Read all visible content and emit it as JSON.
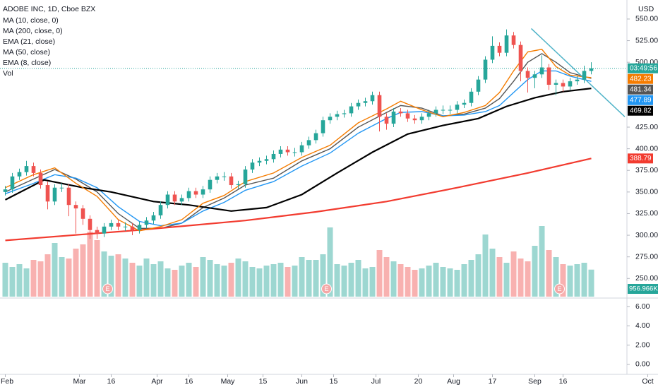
{
  "chart_data": {
    "type": "candlestick",
    "title": "ADOBE INC, 1D, Cboe BZX",
    "currency": "USD",
    "up_color": "#26a69a",
    "down_color": "#ef5350",
    "xlim": [
      -1.5,
      184.9
    ],
    "xticks": [
      {
        "value": 0,
        "label": "Feb"
      },
      {
        "value": 21,
        "label": "Mar"
      },
      {
        "value": 30,
        "label": "16"
      },
      {
        "value": 43,
        "label": "Apr"
      },
      {
        "value": 52,
        "label": "16"
      },
      {
        "value": 63,
        "label": "May"
      },
      {
        "value": 73,
        "label": "15"
      },
      {
        "value": 84,
        "label": "Jun"
      },
      {
        "value": 93,
        "label": "15"
      },
      {
        "value": 105,
        "label": "Jul"
      },
      {
        "value": 117,
        "label": "20"
      },
      {
        "value": 127,
        "label": "Aug"
      },
      {
        "value": 138,
        "label": "17"
      },
      {
        "value": 150,
        "label": "Sep"
      },
      {
        "value": 158,
        "label": "16"
      },
      {
        "value": 182,
        "label": "Oct"
      }
    ],
    "ylim": [
      229,
      572
    ],
    "yticks": [
      {
        "value": 250,
        "label": "250.00"
      },
      {
        "value": 275,
        "label": "275.00"
      },
      {
        "value": 300,
        "label": "300.00"
      },
      {
        "value": 325,
        "label": "325.00"
      },
      {
        "value": 350,
        "label": "350.00"
      },
      {
        "value": 375,
        "label": "375.00"
      },
      {
        "value": 400,
        "label": "400.00"
      },
      {
        "value": 425,
        "label": "425.00"
      },
      {
        "value": 500,
        "label": "500.00"
      },
      {
        "value": 525,
        "label": "525.00"
      },
      {
        "value": 550,
        "label": "550.00"
      }
    ],
    "x": [
      0,
      2,
      4,
      6,
      8,
      10,
      12,
      14,
      16,
      18,
      20,
      22,
      24,
      26,
      28,
      30,
      32,
      34,
      36,
      38,
      40,
      42,
      44,
      46,
      48,
      50,
      52,
      54,
      56,
      58,
      60,
      62,
      64,
      66,
      68,
      70,
      72,
      74,
      76,
      78,
      80,
      82,
      84,
      86,
      88,
      90,
      92,
      94,
      96,
      98,
      100,
      102,
      104,
      106,
      108,
      110,
      112,
      114,
      116,
      118,
      120,
      122,
      124,
      126,
      128,
      130,
      132,
      134,
      136,
      138,
      140,
      142,
      144,
      146,
      148,
      150,
      152,
      154,
      156,
      158,
      160,
      162,
      164,
      166
    ],
    "open": [
      350,
      353,
      368,
      373,
      380,
      372,
      358,
      339,
      355,
      355,
      335,
      331,
      319,
      306,
      302,
      310,
      314,
      310,
      310,
      306,
      312,
      317,
      323,
      335,
      347,
      339,
      343,
      351,
      347,
      353,
      364,
      368,
      368,
      358,
      359,
      376,
      384,
      386,
      388,
      394,
      399,
      396,
      396,
      404,
      410,
      418,
      433,
      437,
      440,
      441,
      449,
      453,
      455,
      462,
      437,
      429,
      443,
      441,
      435,
      433,
      437,
      441,
      445,
      445,
      445,
      451,
      453,
      466,
      480,
      503,
      519,
      511,
      531,
      520,
      490,
      482,
      486,
      494,
      474,
      476,
      472,
      478,
      480,
      490
    ],
    "high": [
      357,
      372,
      377,
      386,
      384,
      376,
      362,
      359,
      360,
      359,
      339,
      335,
      323,
      310,
      314,
      318,
      318,
      315,
      314,
      316,
      321,
      327,
      339,
      351,
      351,
      347,
      355,
      355,
      357,
      368,
      372,
      373,
      372,
      363,
      380,
      388,
      390,
      392,
      398,
      403,
      403,
      401,
      408,
      414,
      422,
      437,
      441,
      444,
      445,
      453,
      457,
      459,
      466,
      466,
      441,
      447,
      447,
      445,
      439,
      441,
      445,
      449,
      450,
      450,
      455,
      457,
      470,
      484,
      507,
      530,
      523,
      538,
      535,
      524,
      494,
      490,
      508,
      498,
      480,
      480,
      482,
      484,
      496,
      500
    ],
    "low": [
      346,
      349,
      364,
      369,
      368,
      354,
      330,
      335,
      350,
      322,
      302,
      312,
      296,
      296,
      298,
      306,
      306,
      305,
      300,
      302,
      308,
      313,
      319,
      331,
      335,
      335,
      339,
      343,
      343,
      349,
      360,
      363,
      354,
      354,
      355,
      372,
      380,
      382,
      384,
      390,
      392,
      391,
      392,
      400,
      406,
      414,
      429,
      433,
      436,
      437,
      445,
      449,
      451,
      420,
      422,
      425,
      437,
      431,
      429,
      429,
      433,
      437,
      440,
      440,
      441,
      447,
      449,
      462,
      476,
      499,
      507,
      507,
      516,
      478,
      465,
      470,
      482,
      468,
      462,
      466,
      468,
      474,
      476,
      486
    ],
    "close": [
      353,
      368,
      373,
      380,
      372,
      358,
      339,
      355,
      355,
      335,
      331,
      319,
      306,
      302,
      310,
      314,
      310,
      310,
      306,
      312,
      317,
      323,
      335,
      347,
      339,
      343,
      351,
      347,
      353,
      364,
      368,
      368,
      358,
      359,
      376,
      384,
      386,
      388,
      394,
      399,
      396,
      396,
      404,
      410,
      418,
      433,
      437,
      440,
      441,
      449,
      453,
      455,
      462,
      437,
      429,
      443,
      441,
      435,
      433,
      437,
      441,
      445,
      445,
      445,
      451,
      453,
      466,
      480,
      503,
      519,
      511,
      531,
      520,
      490,
      482,
      486,
      494,
      474,
      476,
      472,
      478,
      480,
      490,
      493
    ],
    "series": [
      {
        "name": "MA (10, close, 0)",
        "color": "#555555",
        "x": [
          0,
          8,
          14,
          20,
          26,
          32,
          38,
          44,
          50,
          56,
          62,
          68,
          76,
          84,
          92,
          100,
          108,
          112,
          118,
          124,
          130,
          136,
          140,
          144,
          148,
          152,
          156,
          160,
          166
        ],
        "values": [
          350,
          365,
          376,
          365,
          350,
          325,
          308,
          308,
          314,
          332,
          343,
          358,
          366,
          386,
          400,
          425,
          442,
          450,
          447,
          438,
          440,
          447,
          458,
          478,
          500,
          510,
          500,
          488,
          481.34
        ]
      },
      {
        "name": "MA (200, close, 0)",
        "color": "#f23b2f",
        "x": [
          0,
          38,
          68,
          88,
          108,
          128,
          148,
          166
        ],
        "values": [
          294,
          306,
          317,
          327,
          339,
          355,
          372,
          388.79
        ]
      },
      {
        "name": "EMA (21, close)",
        "color": "#2196f3",
        "x": [
          0,
          8,
          14,
          20,
          26,
          32,
          38,
          44,
          50,
          56,
          62,
          68,
          76,
          84,
          92,
          100,
          108,
          112,
          118,
          124,
          130,
          136,
          140,
          144,
          148,
          152,
          156,
          160,
          166
        ],
        "values": [
          348,
          360,
          370,
          366,
          355,
          333,
          316,
          311,
          314,
          328,
          338,
          352,
          362,
          380,
          395,
          418,
          435,
          442,
          443,
          438,
          439,
          443,
          450,
          465,
          480,
          490,
          490,
          484,
          477.89
        ]
      },
      {
        "name": "MA (50, close)",
        "color": "#000000",
        "x": [
          0,
          11,
          22,
          30,
          42,
          52,
          64,
          74,
          84,
          94,
          104,
          114,
          124,
          134,
          142,
          150,
          158,
          166
        ],
        "values": [
          341,
          364,
          355,
          350,
          339,
          335,
          328,
          332,
          347,
          372,
          396,
          417,
          427,
          435,
          449,
          459,
          466,
          469.82
        ]
      },
      {
        "name": "EMA (8, close)",
        "color": "#f57c00",
        "x": [
          0,
          8,
          14,
          20,
          26,
          32,
          38,
          44,
          50,
          56,
          62,
          68,
          76,
          84,
          92,
          100,
          108,
          112,
          118,
          124,
          130,
          136,
          140,
          144,
          148,
          152,
          156,
          160,
          166
        ],
        "values": [
          355,
          370,
          378,
          360,
          345,
          318,
          305,
          310,
          318,
          337,
          346,
          362,
          372,
          390,
          404,
          430,
          446,
          455,
          445,
          437,
          442,
          450,
          465,
          490,
          512,
          515,
          495,
          485,
          482.23
        ]
      }
    ],
    "volume": {
      "name": "Vol",
      "ylim": [
        0,
        10500000
      ],
      "values": [
        1200000,
        1050000,
        1150000,
        1000000,
        1300000,
        1250000,
        1500000,
        1900000,
        1400000,
        1350000,
        1700000,
        1850000,
        2300000,
        2000000,
        1600000,
        1450000,
        1500000,
        1350000,
        1200000,
        1100000,
        1350000,
        1150000,
        1250000,
        1000000,
        950000,
        1100000,
        1200000,
        1050000,
        1400000,
        1300000,
        1150000,
        1100000,
        1200000,
        1350000,
        1250000,
        1050000,
        1000000,
        1100000,
        1150000,
        1200000,
        1050000,
        1100000,
        1400000,
        1300000,
        1300000,
        1500000,
        2450000,
        1150000,
        1100000,
        1200000,
        1300000,
        1000000,
        1050000,
        1650000,
        1400000,
        1250000,
        1150000,
        1050000,
        950000,
        1000000,
        1100000,
        1200000,
        1050000,
        1000000,
        950000,
        1150000,
        1300000,
        1500000,
        2200000,
        1700000,
        1400000,
        1200000,
        1600000,
        1350000,
        1250000,
        1800000,
        2500000,
        1650000,
        1400000,
        1150000,
        1100000,
        1150000,
        1200000,
        956966
      ],
      "value_labels": [
        null,
        null,
        null,
        null,
        null,
        null,
        null,
        null,
        null,
        null,
        null,
        null,
        null,
        null,
        null,
        null,
        null,
        null,
        null,
        null,
        null,
        null,
        null,
        null,
        null,
        null,
        null,
        null,
        null,
        null,
        null,
        null,
        null,
        null,
        null,
        null,
        null,
        null,
        null,
        null,
        null,
        null,
        null,
        null,
        null,
        null,
        null,
        null,
        null,
        null,
        null,
        null,
        null,
        null,
        null,
        null,
        null,
        null,
        null,
        null,
        null,
        null,
        null,
        null,
        null,
        null,
        null,
        null,
        null,
        null,
        null,
        null,
        null,
        null,
        null,
        null,
        null,
        null,
        null,
        null,
        null,
        null,
        null,
        "956.966K"
      ]
    },
    "earnings": {
      "x": [
        29,
        91,
        157
      ],
      "labels": [
        "E",
        "E",
        "E"
      ]
    },
    "trendline": {
      "color": "#4fb3c8",
      "x": [
        149,
        175.5
      ],
      "values": [
        539,
        437
      ]
    },
    "countdown": "03:49:56",
    "lower_pane": {
      "ylim": [
        -1.03,
        6.73
      ],
      "yticks": [
        {
          "value": 0,
          "label": "0.00"
        },
        {
          "value": 2,
          "label": "2.00"
        },
        {
          "value": 4,
          "label": "4.00"
        },
        {
          "value": 6,
          "label": "6.00"
        }
      ]
    }
  }
}
